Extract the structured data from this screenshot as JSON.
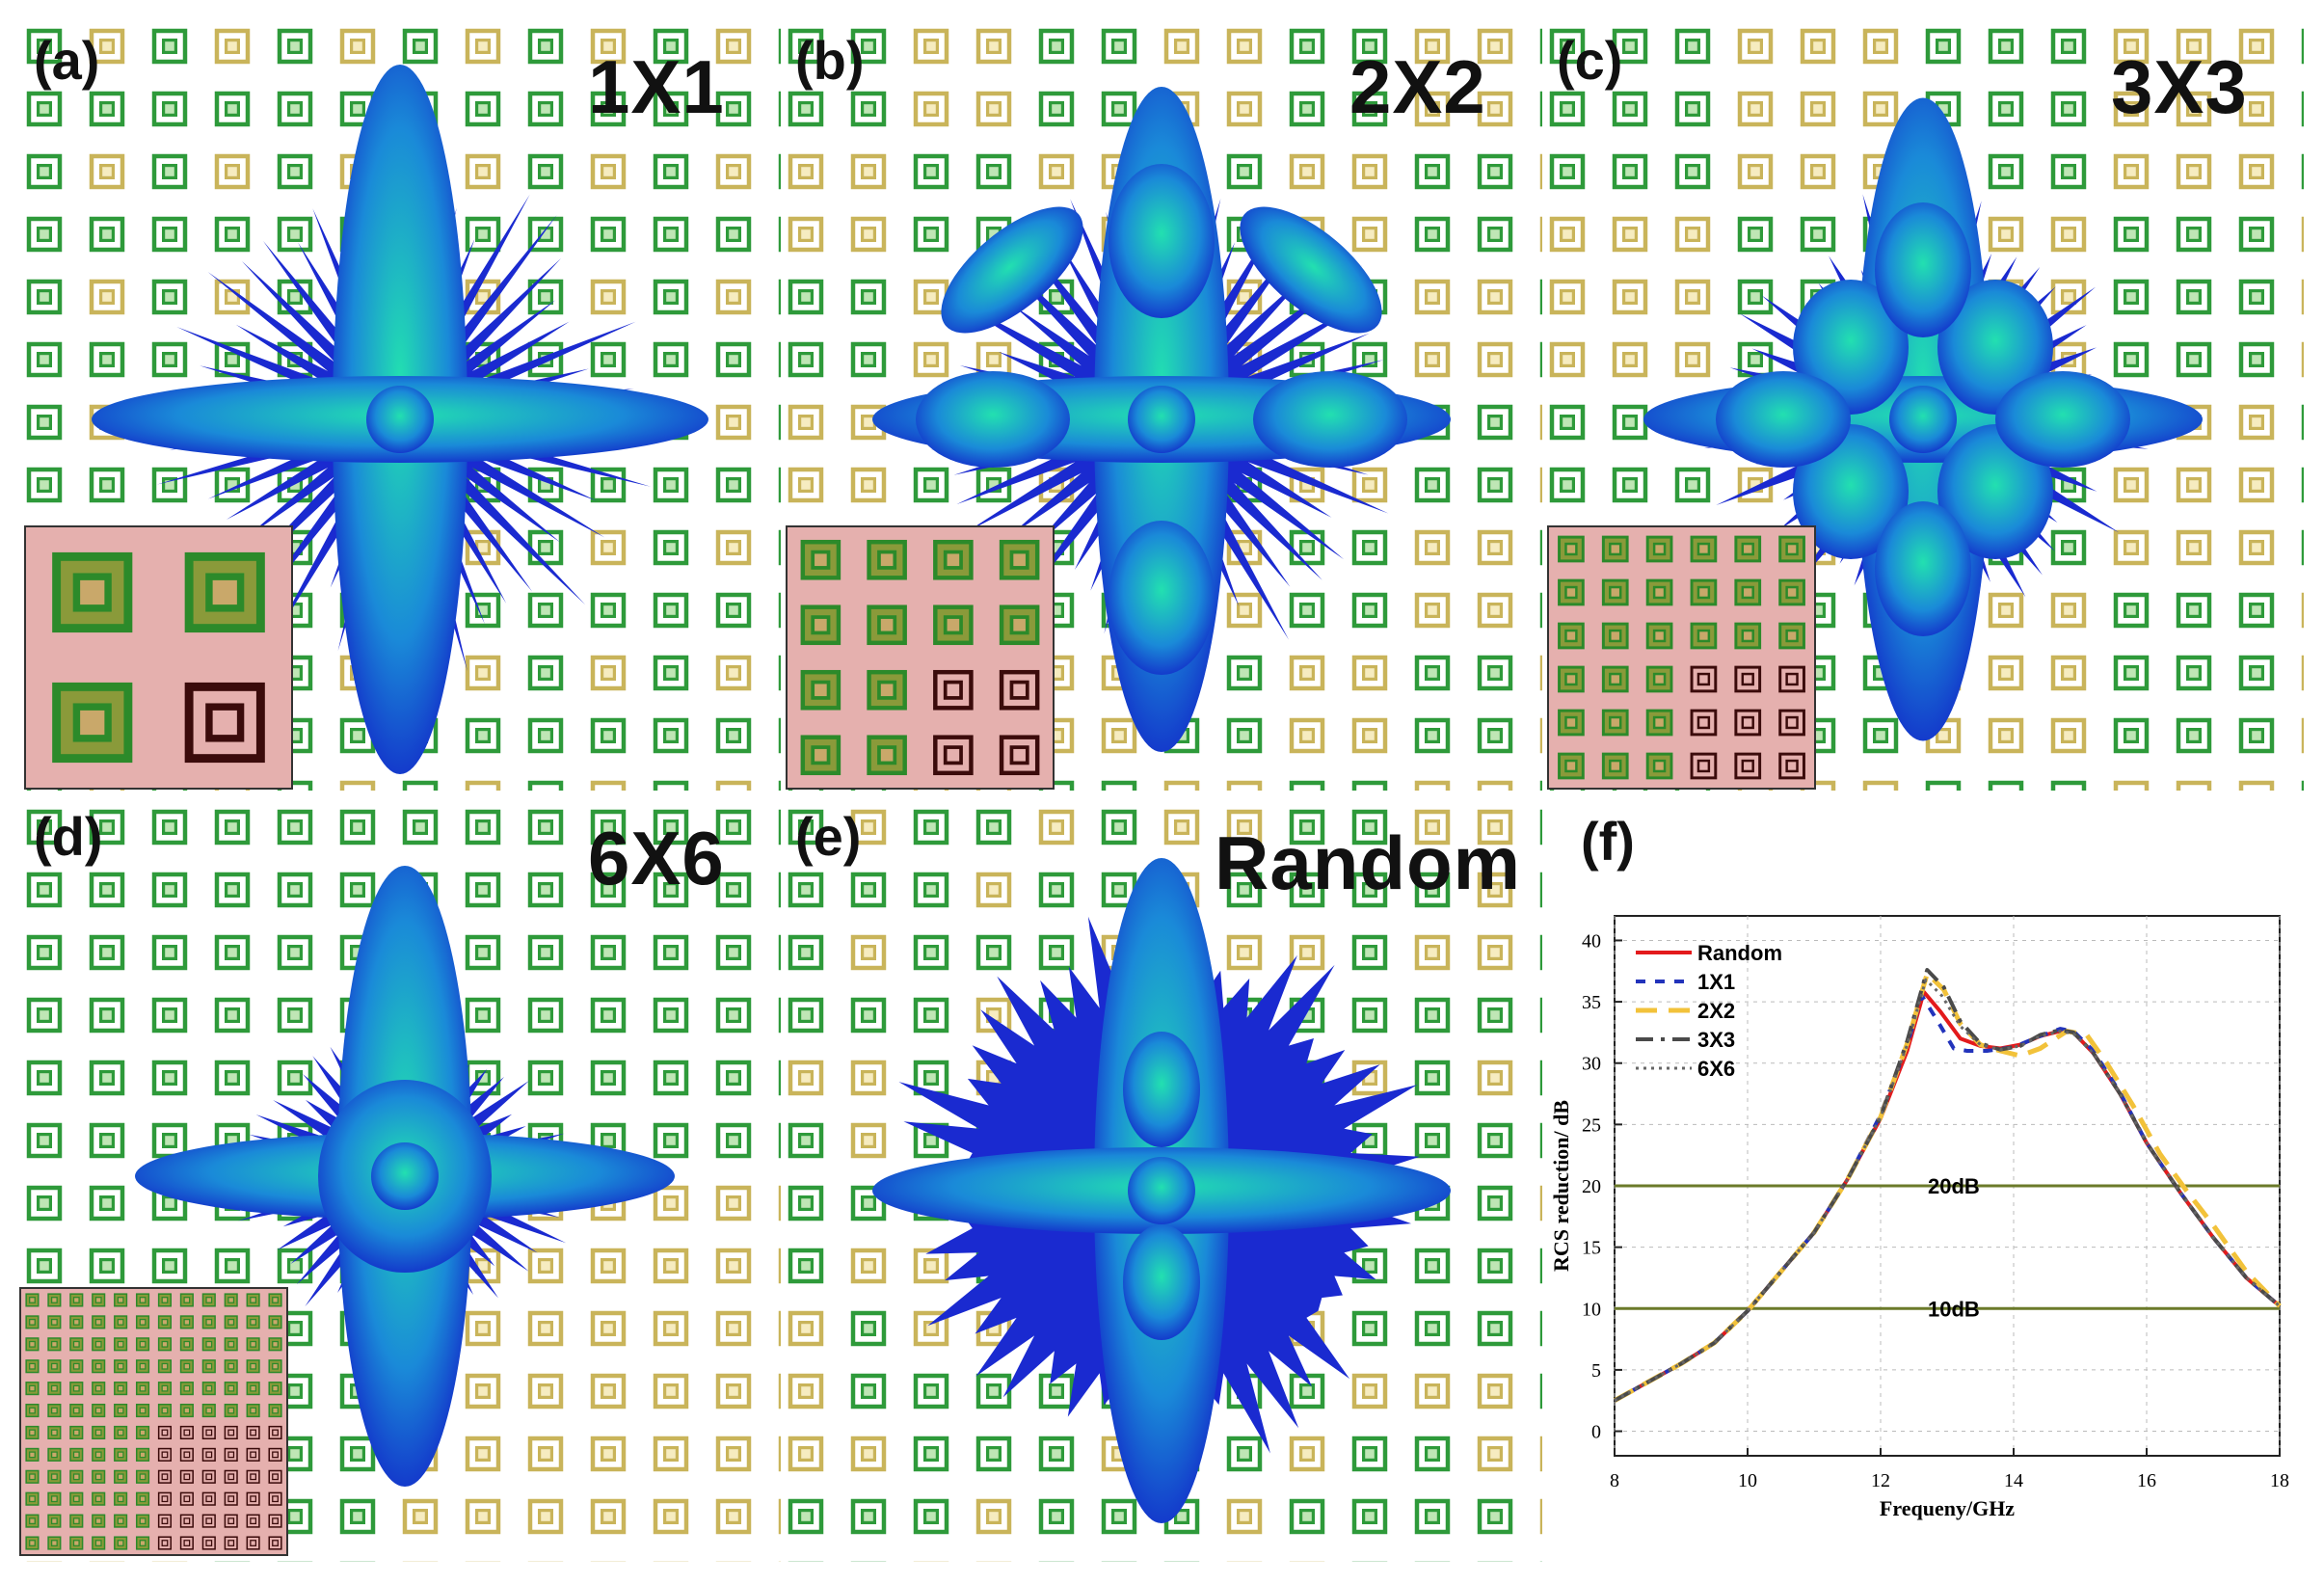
{
  "panels": [
    {
      "label": "(a)",
      "title": "1X1"
    },
    {
      "label": "(b)",
      "title": "2X2"
    },
    {
      "label": "(c)",
      "title": "3X3"
    },
    {
      "label": "(d)",
      "title": "6X6"
    },
    {
      "label": "(e)",
      "title": "Random"
    },
    {
      "label": "(f)",
      "title": ""
    }
  ],
  "colors": {
    "green_cell": "#2e9a3a",
    "gold_cell": "#c9b45a",
    "inset_bg": "#e5b0ae",
    "lobe_dark": "#1226c8",
    "lobe_light": "#22e0b0"
  },
  "chart_data": {
    "type": "line",
    "title": "",
    "xlabel": "Frequeny/GHz",
    "ylabel": "RCS reduction/ dB",
    "xlim": [
      8,
      18
    ],
    "ylim": [
      -2,
      42
    ],
    "xticks": [
      8,
      10,
      12,
      14,
      16,
      18
    ],
    "yticks": [
      0,
      5,
      10,
      15,
      20,
      25,
      30,
      35,
      40
    ],
    "reference_lines": [
      {
        "y": 20,
        "label": "20dB"
      },
      {
        "y": 10,
        "label": "10dB"
      }
    ],
    "series": [
      {
        "name": "Random",
        "style": "solid",
        "color": "#e31a1c",
        "x": [
          8,
          8.5,
          9,
          9.5,
          10,
          10.5,
          11,
          11.5,
          12,
          12.4,
          12.65,
          12.9,
          13.2,
          13.5,
          13.8,
          14.1,
          14.4,
          14.7,
          14.9,
          15.2,
          15.6,
          16,
          16.5,
          17,
          17.5,
          18
        ],
        "y": [
          2.5,
          4,
          5.5,
          7.2,
          9.8,
          13,
          16.2,
          20.5,
          25.5,
          31,
          35.8,
          34.2,
          32,
          31.4,
          31.2,
          31.5,
          32.2,
          32.6,
          32.5,
          30.8,
          27.5,
          23.5,
          19.5,
          15.8,
          12.5,
          10.2
        ]
      },
      {
        "name": "1X1",
        "style": "dashed",
        "color": "#2233bb",
        "x": [
          8,
          8.5,
          9,
          9.5,
          10,
          10.5,
          11,
          11.5,
          12,
          12.4,
          12.62,
          12.85,
          13.1,
          13.3,
          13.6,
          14,
          14.4,
          14.7,
          14.9,
          15.2,
          15.6,
          16,
          16.5,
          17,
          17.5,
          18
        ],
        "y": [
          2.5,
          4,
          5.5,
          7.2,
          9.8,
          13,
          16.2,
          20.5,
          25.8,
          31.5,
          35.5,
          33.5,
          31.2,
          31,
          31,
          31.3,
          32.2,
          32.8,
          32.6,
          31,
          27.6,
          23.5,
          19.5,
          15.8,
          12.5,
          10.2
        ]
      },
      {
        "name": "2X2",
        "style": "longdash",
        "color": "#f2c23a",
        "x": [
          8,
          8.5,
          9,
          9.5,
          10,
          10.5,
          11,
          11.5,
          12,
          12.4,
          12.7,
          12.95,
          13.2,
          13.5,
          13.8,
          14.1,
          14.4,
          14.8,
          15.1,
          15.4,
          15.8,
          16.2,
          16.6,
          17,
          17.5,
          18
        ],
        "y": [
          2.5,
          4,
          5.5,
          7.2,
          9.8,
          13,
          16.2,
          20.5,
          25.6,
          31.6,
          37.3,
          36,
          33.2,
          31.5,
          31,
          30.6,
          31.2,
          32.6,
          32.3,
          30,
          26.5,
          22.6,
          19.6,
          16.8,
          13,
          10.2
        ]
      },
      {
        "name": "3X3",
        "style": "dashdot",
        "color": "#4a4a4a",
        "x": [
          8,
          8.5,
          9,
          9.5,
          10,
          10.5,
          11,
          11.5,
          12,
          12.4,
          12.7,
          12.95,
          13.2,
          13.5,
          13.8,
          14.1,
          14.4,
          14.7,
          14.9,
          15.2,
          15.6,
          16,
          16.5,
          17,
          17.5,
          18
        ],
        "y": [
          2.5,
          4,
          5.5,
          7.2,
          9.8,
          13,
          16.2,
          20.5,
          25.6,
          31.8,
          37.6,
          36.2,
          33.4,
          31.6,
          31.1,
          31.4,
          32.3,
          32.7,
          32.5,
          30.8,
          27.5,
          23.5,
          19.5,
          15.8,
          12.5,
          10.2
        ]
      },
      {
        "name": "6X6",
        "style": "dotted",
        "color": "#666666",
        "x": [
          8,
          8.5,
          9,
          9.5,
          10,
          10.5,
          11,
          11.5,
          12,
          12.4,
          12.68,
          12.92,
          13.2,
          13.5,
          13.8,
          14.1,
          14.4,
          14.7,
          14.9,
          15.2,
          15.6,
          16,
          16.5,
          17,
          17.5,
          18
        ],
        "y": [
          2.5,
          4,
          5.5,
          7.2,
          9.8,
          13,
          16.2,
          20.5,
          25.6,
          31.5,
          36.8,
          35.5,
          33,
          31.5,
          31.1,
          31.4,
          32.2,
          32.6,
          32.4,
          30.8,
          27.5,
          23.5,
          19.5,
          15.8,
          12.5,
          10.2
        ]
      }
    ]
  }
}
